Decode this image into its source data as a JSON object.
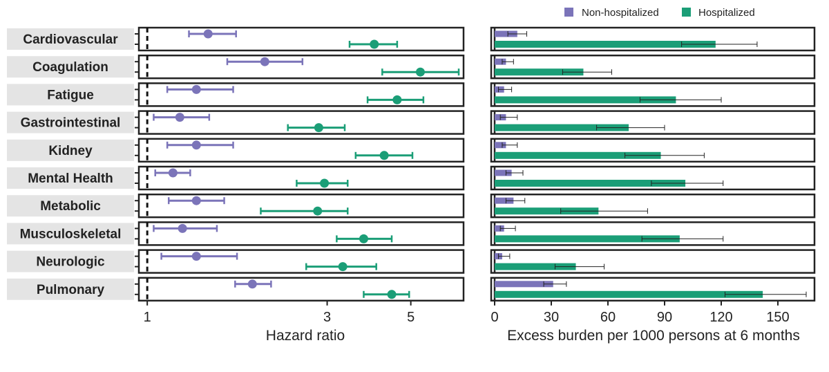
{
  "colors": {
    "non_hospitalized": "#7b74b9",
    "hospitalized": "#1b9e77",
    "label_bg": "#e4e4e4",
    "frame": "#222222"
  },
  "chart_data": [
    {
      "type": "forest",
      "xlabel": "Hazard ratio",
      "xscale": "log",
      "xticks": [
        1,
        3,
        5
      ],
      "xlim": [
        0.95,
        6.9
      ],
      "reference_line": 1,
      "categories": [
        "Cardiovascular",
        "Coagulation",
        "Fatigue",
        "Gastrointestinal",
        "Kidney",
        "Mental Health",
        "Metabolic",
        "Musculoskeletal",
        "Neurologic",
        "Pulmonary"
      ],
      "series": [
        {
          "name": "Non-hospitalized",
          "color": "#7b74b9",
          "estimate": [
            1.45,
            2.05,
            1.35,
            1.22,
            1.35,
            1.17,
            1.35,
            1.24,
            1.35,
            1.9
          ],
          "lower": [
            1.29,
            1.63,
            1.13,
            1.04,
            1.13,
            1.05,
            1.14,
            1.04,
            1.09,
            1.71
          ],
          "upper": [
            1.72,
            2.58,
            1.69,
            1.46,
            1.69,
            1.3,
            1.6,
            1.53,
            1.73,
            2.13
          ]
        },
        {
          "name": "Hospitalized",
          "color": "#1b9e77",
          "estimate": [
            4.0,
            5.3,
            4.6,
            2.85,
            4.25,
            2.95,
            2.83,
            3.75,
            3.3,
            4.45
          ],
          "lower": [
            3.44,
            4.2,
            3.84,
            2.36,
            3.57,
            2.49,
            2.0,
            3.18,
            2.64,
            3.75
          ],
          "upper": [
            4.6,
            6.7,
            5.4,
            3.34,
            5.05,
            3.4,
            3.4,
            4.45,
            4.05,
            4.95
          ]
        }
      ]
    },
    {
      "type": "bar",
      "orientation": "horizontal",
      "xlabel": "Excess burden per 1000 persons at 6 months",
      "xticks": [
        0,
        30,
        60,
        90,
        120,
        150
      ],
      "xlim": [
        0,
        168
      ],
      "legend_position": "top",
      "categories": [
        "Cardiovascular",
        "Coagulation",
        "Fatigue",
        "Gastrointestinal",
        "Kidney",
        "Mental Health",
        "Metabolic",
        "Musculoskeletal",
        "Neurologic",
        "Pulmonary"
      ],
      "series": [
        {
          "name": "Non-hospitalized",
          "color": "#7b74b9",
          "values": [
            12,
            6,
            5,
            6,
            6,
            9,
            10,
            5,
            4,
            31
          ],
          "error_low": [
            7,
            4,
            2,
            3,
            4,
            6,
            6,
            3,
            2,
            26
          ],
          "error_high": [
            17,
            10,
            9,
            12,
            12,
            15,
            16,
            11,
            8,
            38
          ]
        },
        {
          "name": "Hospitalized",
          "color": "#1b9e77",
          "values": [
            117,
            47,
            96,
            71,
            88,
            101,
            55,
            98,
            43,
            142
          ],
          "error_low": [
            99,
            36,
            77,
            54,
            69,
            83,
            35,
            78,
            32,
            122
          ],
          "error_high": [
            139,
            62,
            120,
            90,
            111,
            121,
            81,
            121,
            58,
            165
          ]
        }
      ]
    }
  ]
}
